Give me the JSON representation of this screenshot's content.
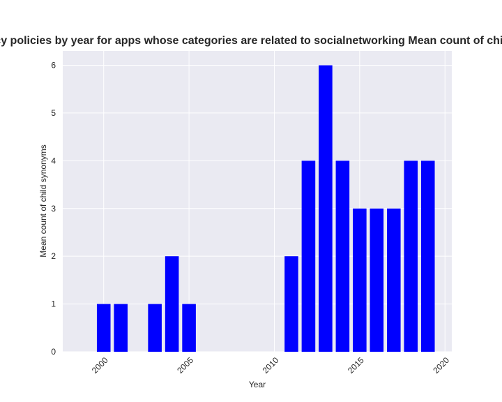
{
  "chart_data": {
    "type": "bar",
    "title": "Mean count of child synonyms in privacy policies by year for apps whose categories are related to socialnetworking Mean count of child synonyms in privacy policies by year",
    "xlabel": "Year",
    "ylabel": "Mean count of child synonyms",
    "x": [
      2000,
      2001,
      2003,
      2004,
      2005,
      2011,
      2012,
      2013,
      2014,
      2015,
      2016,
      2017,
      2018,
      2019
    ],
    "values": [
      1,
      1,
      1,
      2,
      1,
      2,
      4,
      6,
      4,
      3,
      3,
      3,
      4,
      4
    ],
    "xlim": [
      1997.6,
      2020.4
    ],
    "ylim": [
      0,
      6.3
    ],
    "xticks": [
      2000,
      2005,
      2010,
      2015,
      2020
    ],
    "yticks": [
      0,
      1,
      2,
      3,
      4,
      5,
      6
    ],
    "grid": true,
    "bar_color": "#0000ff",
    "background": "#eaeaf2"
  }
}
